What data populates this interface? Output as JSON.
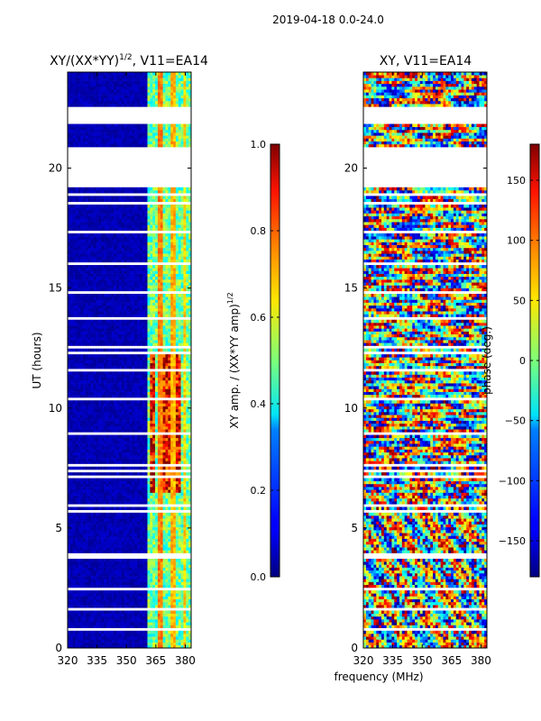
{
  "suptitle": "2019-04-18 0.0-24.0",
  "chart_data": [
    {
      "type": "heatmap",
      "title": "XY/(XX*YY)^1/2, V11=EA14",
      "title_main": "XY/(XX*YY)",
      "title_exp": "1/2",
      "title_tail": ", V11=EA14",
      "xlabel": "",
      "ylabel": "UT (hours)",
      "xlim": [
        320,
        383
      ],
      "ylim": [
        0,
        24
      ],
      "xticks": [
        "320",
        "335",
        "350",
        "365",
        "380"
      ],
      "xtick_values": [
        320,
        335,
        350,
        365,
        380
      ],
      "yticks": [
        "0",
        "5",
        "10",
        "15",
        "20"
      ],
      "ytick_values": [
        0,
        5,
        10,
        15,
        20
      ],
      "quantity": "amplitude",
      "colorbar": {
        "label": "XY amp. / (XX*YY amp)^1/2",
        "label_main": "XY amp. / (XX*YY amp)",
        "label_exp": "1/2",
        "range": [
          0.0,
          1.0
        ],
        "ticks": [
          "0.0",
          "0.2",
          "0.4",
          "0.6",
          "0.8",
          "1.0"
        ],
        "tick_values": [
          0.0,
          0.2,
          0.4,
          0.6,
          0.8,
          1.0
        ]
      }
    },
    {
      "type": "heatmap",
      "title": "XY, V11=EA14",
      "xlabel": "frequency (MHz)",
      "ylabel": "",
      "xlim": [
        320,
        383
      ],
      "ylim": [
        0,
        24
      ],
      "xticks": [
        "320",
        "335",
        "350",
        "365",
        "380"
      ],
      "xtick_values": [
        320,
        335,
        350,
        365,
        380
      ],
      "yticks": [
        "0",
        "5",
        "10",
        "15",
        "20"
      ],
      "ytick_values": [
        0,
        5,
        10,
        15,
        20
      ],
      "quantity": "phase",
      "colorbar": {
        "label": "phase (deg.)",
        "range": [
          -180,
          180
        ],
        "ticks": [
          "−150",
          "−100",
          "−50",
          "0",
          "50",
          "100",
          "150"
        ],
        "tick_values": [
          -150,
          -100,
          -50,
          0,
          50,
          100,
          150
        ]
      }
    }
  ]
}
